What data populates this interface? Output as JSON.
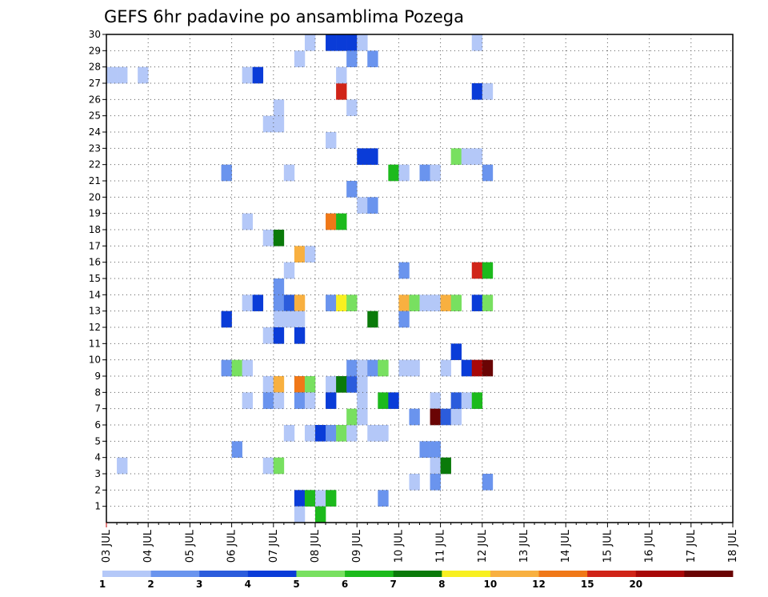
{
  "chart_data": {
    "type": "heatmap",
    "title": "GEFS 6hr padavine po ansamblima Pozega",
    "xlabel": "",
    "ylabel": "",
    "x_tick_labels": [
      "03 JUL",
      "04 JUL",
      "05 JUL",
      "06 JUL",
      "07 JUL",
      "08 JUL",
      "09 JUL",
      "10 JUL",
      "11 JUL",
      "12 JUL",
      "13 JUL",
      "14 JUL",
      "15 JUL",
      "16 JUL",
      "17 JUL",
      "18 JUL"
    ],
    "y_tick_labels": [
      "1",
      "2",
      "3",
      "4",
      "5",
      "6",
      "7",
      "8",
      "9",
      "10",
      "11",
      "12",
      "13",
      "14",
      "15",
      "16",
      "17",
      "18",
      "19",
      "20",
      "21",
      "22",
      "23",
      "24",
      "25",
      "26",
      "27",
      "28",
      "29",
      "30"
    ],
    "xlim": [
      0,
      60
    ],
    "ylim": [
      0,
      30
    ],
    "x_step_unit": "6hr",
    "grid": "dotted",
    "colorbar": {
      "labels": [
        "1",
        "2",
        "3",
        "4",
        "5",
        "6",
        "7",
        "8",
        "10",
        "12",
        "15",
        "20"
      ],
      "colors": [
        "#b4c8f8",
        "#6a94ee",
        "#2b5cdc",
        "#0a3cd8",
        "#78e060",
        "#1cba1c",
        "#0a7a0a",
        "#f8f020",
        "#f8b040",
        "#f07818",
        "#d02418",
        "#a80808",
        "#6a0404"
      ],
      "legend_position": "bottom"
    },
    "cells": [
      {
        "x": 0,
        "y": 27,
        "v": 1
      },
      {
        "x": 1,
        "y": 27,
        "v": 1
      },
      {
        "x": 3,
        "y": 27,
        "v": 1
      },
      {
        "x": 1,
        "y": 3,
        "v": 1
      },
      {
        "x": 11,
        "y": 21,
        "v": 2
      },
      {
        "x": 11,
        "y": 12,
        "v": 4
      },
      {
        "x": 11,
        "y": 9,
        "v": 2
      },
      {
        "x": 12,
        "y": 9,
        "v": 5
      },
      {
        "x": 12,
        "y": 4,
        "v": 2
      },
      {
        "x": 13,
        "y": 27,
        "v": 1
      },
      {
        "x": 14,
        "y": 27,
        "v": 4
      },
      {
        "x": 13,
        "y": 18,
        "v": 1
      },
      {
        "x": 13,
        "y": 13,
        "v": 1
      },
      {
        "x": 14,
        "y": 13,
        "v": 4
      },
      {
        "x": 13,
        "y": 9,
        "v": 1
      },
      {
        "x": 13,
        "y": 7,
        "v": 1
      },
      {
        "x": 15,
        "y": 24,
        "v": 1
      },
      {
        "x": 16,
        "y": 24,
        "v": 1
      },
      {
        "x": 16,
        "y": 25,
        "v": 1
      },
      {
        "x": 15,
        "y": 17,
        "v": 1
      },
      {
        "x": 16,
        "y": 17,
        "v": 7
      },
      {
        "x": 16,
        "y": 14,
        "v": 2
      },
      {
        "x": 16,
        "y": 13,
        "v": 2
      },
      {
        "x": 17,
        "y": 13,
        "v": 3
      },
      {
        "x": 18,
        "y": 13,
        "v": 9
      },
      {
        "x": 16,
        "y": 12,
        "v": 1
      },
      {
        "x": 17,
        "y": 12,
        "v": 1
      },
      {
        "x": 15,
        "y": 11,
        "v": 1
      },
      {
        "x": 16,
        "y": 11,
        "v": 4
      },
      {
        "x": 15,
        "y": 8,
        "v": 1
      },
      {
        "x": 16,
        "y": 8,
        "v": 9
      },
      {
        "x": 15,
        "y": 7,
        "v": 2
      },
      {
        "x": 16,
        "y": 7,
        "v": 1
      },
      {
        "x": 15,
        "y": 3,
        "v": 1
      },
      {
        "x": 16,
        "y": 3,
        "v": 5
      },
      {
        "x": 17,
        "y": 21,
        "v": 1
      },
      {
        "x": 17,
        "y": 15,
        "v": 1
      },
      {
        "x": 17,
        "y": 5,
        "v": 1
      },
      {
        "x": 18,
        "y": 28,
        "v": 1
      },
      {
        "x": 19,
        "y": 29,
        "v": 1
      },
      {
        "x": 18,
        "y": 16,
        "v": 9
      },
      {
        "x": 19,
        "y": 16,
        "v": 1
      },
      {
        "x": 18,
        "y": 12,
        "v": 1
      },
      {
        "x": 18,
        "y": 11,
        "v": 4
      },
      {
        "x": 18,
        "y": 8,
        "v": 10
      },
      {
        "x": 19,
        "y": 8,
        "v": 5
      },
      {
        "x": 18,
        "y": 7,
        "v": 2
      },
      {
        "x": 19,
        "y": 7,
        "v": 1
      },
      {
        "x": 18,
        "y": 1,
        "v": 4
      },
      {
        "x": 19,
        "y": 1,
        "v": 6
      },
      {
        "x": 18,
        "y": 0,
        "v": 1
      },
      {
        "x": 19,
        "y": 5,
        "v": 1
      },
      {
        "x": 20,
        "y": 5,
        "v": 4
      },
      {
        "x": 21,
        "y": 5,
        "v": 2
      },
      {
        "x": 22,
        "y": 5,
        "v": 5
      },
      {
        "x": 23,
        "y": 5,
        "v": 1
      },
      {
        "x": 21,
        "y": 29,
        "v": 4
      },
      {
        "x": 21,
        "y": 23,
        "v": 1
      },
      {
        "x": 21,
        "y": 18,
        "v": 10
      },
      {
        "x": 22,
        "y": 18,
        "v": 6
      },
      {
        "x": 21,
        "y": 13,
        "v": 2
      },
      {
        "x": 22,
        "y": 13,
        "v": 8
      },
      {
        "x": 21,
        "y": 8,
        "v": 1
      },
      {
        "x": 22,
        "y": 8,
        "v": 7
      },
      {
        "x": 23,
        "y": 8,
        "v": 3
      },
      {
        "x": 23,
        "y": 9,
        "v": 2
      },
      {
        "x": 24,
        "y": 9,
        "v": 1
      },
      {
        "x": 21,
        "y": 7,
        "v": 4
      },
      {
        "x": 20,
        "y": 1,
        "v": 1
      },
      {
        "x": 21,
        "y": 1,
        "v": 6
      },
      {
        "x": 20,
        "y": 0,
        "v": 6
      },
      {
        "x": 22,
        "y": 29,
        "v": 4
      },
      {
        "x": 23,
        "y": 29,
        "v": 4
      },
      {
        "x": 24,
        "y": 29,
        "v": 1
      },
      {
        "x": 22,
        "y": 26,
        "v": 11
      },
      {
        "x": 22,
        "y": 27,
        "v": 1
      },
      {
        "x": 23,
        "y": 28,
        "v": 2
      },
      {
        "x": 23,
        "y": 25,
        "v": 1
      },
      {
        "x": 23,
        "y": 20,
        "v": 2
      },
      {
        "x": 23,
        "y": 13,
        "v": 5
      },
      {
        "x": 24,
        "y": 8,
        "v": 1
      },
      {
        "x": 24,
        "y": 9,
        "v": 1
      },
      {
        "x": 25,
        "y": 9,
        "v": 2
      },
      {
        "x": 23,
        "y": 6,
        "v": 5
      },
      {
        "x": 24,
        "y": 6,
        "v": 1
      },
      {
        "x": 24,
        "y": 19,
        "v": 1
      },
      {
        "x": 25,
        "y": 19,
        "v": 2
      },
      {
        "x": 24,
        "y": 22,
        "v": 4
      },
      {
        "x": 25,
        "y": 22,
        "v": 4
      },
      {
        "x": 25,
        "y": 28,
        "v": 2
      },
      {
        "x": 25,
        "y": 12,
        "v": 7
      },
      {
        "x": 24,
        "y": 7,
        "v": 1
      },
      {
        "x": 25,
        "y": 5,
        "v": 1
      },
      {
        "x": 26,
        "y": 5,
        "v": 1
      },
      {
        "x": 26,
        "y": 9,
        "v": 5
      },
      {
        "x": 26,
        "y": 7,
        "v": 6
      },
      {
        "x": 27,
        "y": 7,
        "v": 4
      },
      {
        "x": 26,
        "y": 1,
        "v": 2
      },
      {
        "x": 27,
        "y": 21,
        "v": 6
      },
      {
        "x": 28,
        "y": 21,
        "v": 1
      },
      {
        "x": 28,
        "y": 15,
        "v": 2
      },
      {
        "x": 28,
        "y": 13,
        "v": 9
      },
      {
        "x": 29,
        "y": 13,
        "v": 5
      },
      {
        "x": 28,
        "y": 12,
        "v": 2
      },
      {
        "x": 28,
        "y": 9,
        "v": 1
      },
      {
        "x": 29,
        "y": 9,
        "v": 1
      },
      {
        "x": 29,
        "y": 6,
        "v": 2
      },
      {
        "x": 29,
        "y": 2,
        "v": 1
      },
      {
        "x": 30,
        "y": 13,
        "v": 1
      },
      {
        "x": 31,
        "y": 13,
        "v": 1
      },
      {
        "x": 30,
        "y": 4,
        "v": 2
      },
      {
        "x": 31,
        "y": 4,
        "v": 2
      },
      {
        "x": 30,
        "y": 21,
        "v": 2
      },
      {
        "x": 31,
        "y": 21,
        "v": 1
      },
      {
        "x": 31,
        "y": 7,
        "v": 1
      },
      {
        "x": 31,
        "y": 6,
        "v": 13
      },
      {
        "x": 32,
        "y": 6,
        "v": 3
      },
      {
        "x": 31,
        "y": 3,
        "v": 1
      },
      {
        "x": 32,
        "y": 3,
        "v": 7
      },
      {
        "x": 31,
        "y": 2,
        "v": 2
      },
      {
        "x": 32,
        "y": 13,
        "v": 9
      },
      {
        "x": 33,
        "y": 13,
        "v": 5
      },
      {
        "x": 32,
        "y": 9,
        "v": 1
      },
      {
        "x": 33,
        "y": 6,
        "v": 1
      },
      {
        "x": 33,
        "y": 22,
        "v": 5
      },
      {
        "x": 34,
        "y": 22,
        "v": 1
      },
      {
        "x": 35,
        "y": 22,
        "v": 1
      },
      {
        "x": 33,
        "y": 10,
        "v": 4
      },
      {
        "x": 33,
        "y": 7,
        "v": 3
      },
      {
        "x": 34,
        "y": 7,
        "v": 1
      },
      {
        "x": 34,
        "y": 9,
        "v": 4
      },
      {
        "x": 35,
        "y": 9,
        "v": 12
      },
      {
        "x": 35,
        "y": 7,
        "v": 6
      },
      {
        "x": 35,
        "y": 29,
        "v": 1
      },
      {
        "x": 35,
        "y": 26,
        "v": 4
      },
      {
        "x": 36,
        "y": 26,
        "v": 1
      },
      {
        "x": 36,
        "y": 21,
        "v": 2
      },
      {
        "x": 35,
        "y": 15,
        "v": 11
      },
      {
        "x": 36,
        "y": 15,
        "v": 6
      },
      {
        "x": 35,
        "y": 13,
        "v": 4
      },
      {
        "x": 36,
        "y": 13,
        "v": 5
      },
      {
        "x": 36,
        "y": 9,
        "v": 13
      },
      {
        "x": 36,
        "y": 2,
        "v": 2
      }
    ]
  }
}
